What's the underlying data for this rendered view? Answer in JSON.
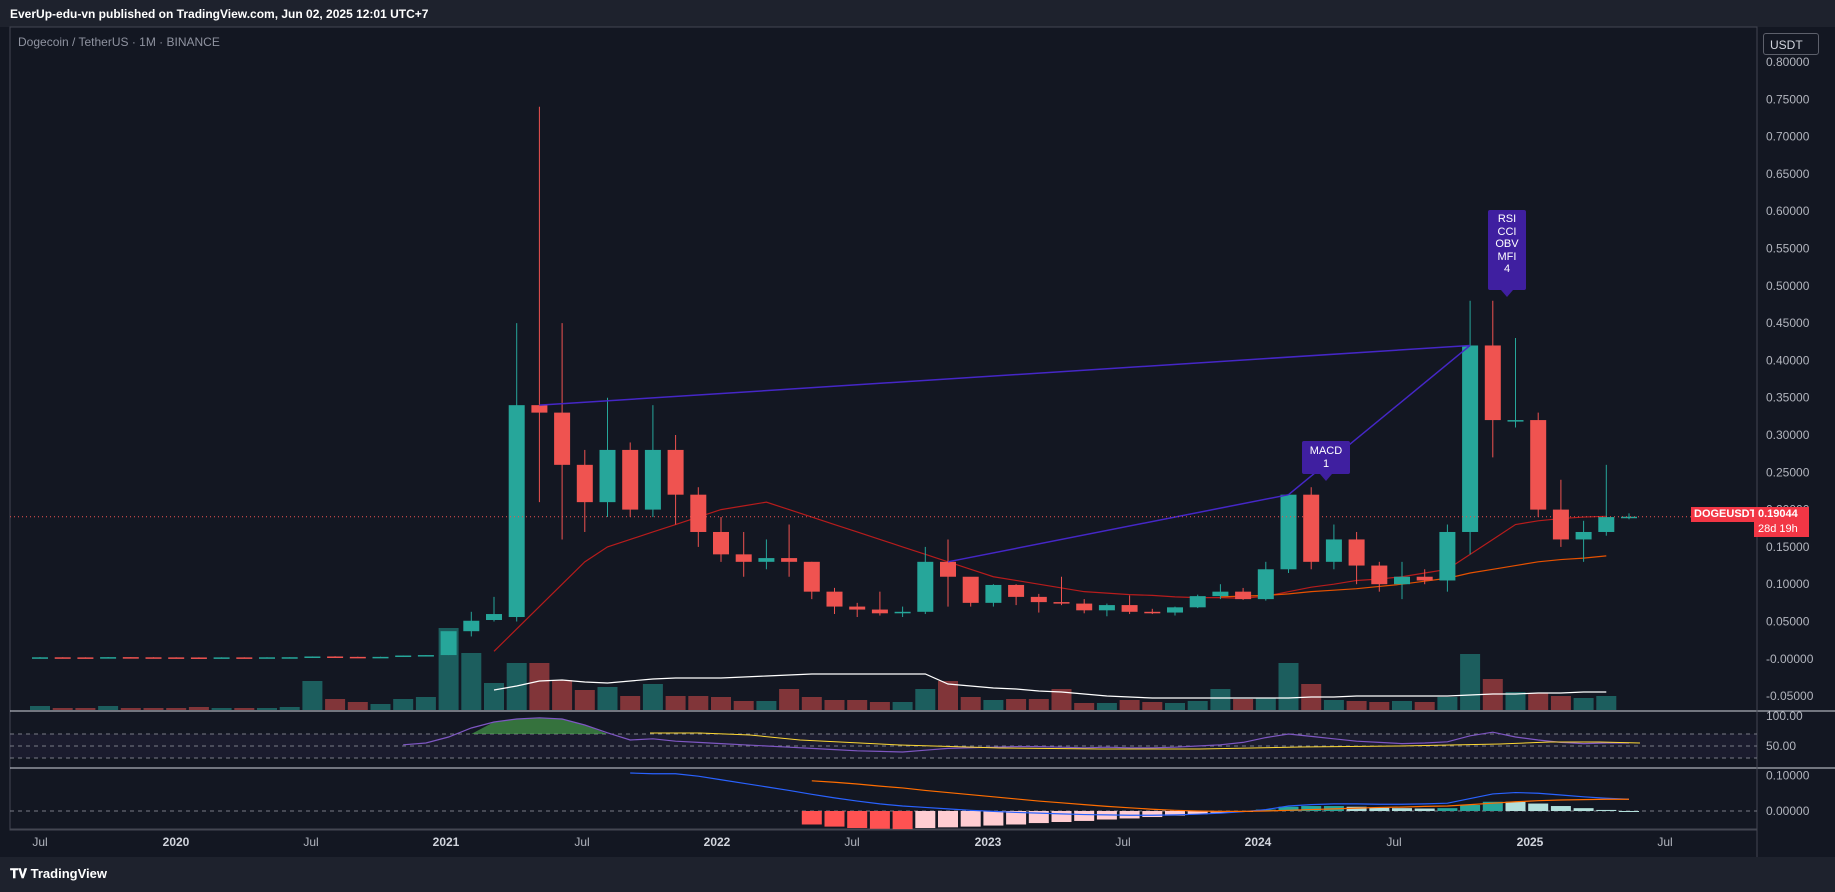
{
  "header": {
    "publisher_line": "EverUp-edu-vn published on TradingView.com, Jun 02, 2025 12:01 UTC+7"
  },
  "symbol": {
    "title": "Dogecoin / TetherUS · 1M · BINANCE",
    "ticker": "DOGEUSDT",
    "last_price": "0.19044",
    "countdown": "28d 19h"
  },
  "currency_button": "USDT",
  "footer": {
    "logo_text": "TradingView"
  },
  "colors": {
    "up": "#26a69a",
    "down": "#ef5350",
    "background": "#131722",
    "marker": "#3f1fa0",
    "divergence": "#4527c7"
  },
  "markers": [
    {
      "id": "macd",
      "lines": [
        "MACD",
        "1"
      ]
    },
    {
      "id": "multi",
      "lines": [
        "RSI",
        "CCI",
        "OBV",
        "MFI",
        "4"
      ]
    }
  ],
  "chart_data": {
    "type": "candlestick",
    "interval": "1M",
    "price_axis": {
      "min": -0.07,
      "max": 0.8,
      "ticks": [
        "0.80000",
        "0.75000",
        "0.70000",
        "0.65000",
        "0.60000",
        "0.55000",
        "0.50000",
        "0.45000",
        "0.40000",
        "0.35000",
        "0.30000",
        "0.25000",
        "0.20000",
        "0.15000",
        "0.10000",
        "0.05000",
        "-0.00000",
        "-0.05000"
      ]
    },
    "rsi_axis": {
      "ticks": [
        "100.00",
        "50.00"
      ]
    },
    "macd_axis": {
      "ticks": [
        "0.10000",
        "0.00000"
      ]
    },
    "time_axis": [
      "Jul",
      "2020",
      "Jul",
      "2021",
      "Jul",
      "2022",
      "Jul",
      "2023",
      "Jul",
      "2024",
      "Jul",
      "2025",
      "Jul"
    ],
    "time_axis_bold": [
      "2020",
      "2021",
      "2022",
      "2023",
      "2024",
      "2025"
    ],
    "candles": [
      [
        0.002,
        0.0022,
        0.0018,
        0.002
      ],
      [
        0.002,
        0.0021,
        0.0018,
        0.0019
      ],
      [
        0.0019,
        0.002,
        0.0017,
        0.0018
      ],
      [
        0.0018,
        0.0024,
        0.0017,
        0.0022
      ],
      [
        0.0022,
        0.0023,
        0.0019,
        0.002
      ],
      [
        0.002,
        0.0021,
        0.0018,
        0.0019
      ],
      [
        0.0019,
        0.002,
        0.0017,
        0.0018
      ],
      [
        0.0018,
        0.002,
        0.0016,
        0.0017
      ],
      [
        0.0017,
        0.002,
        0.0016,
        0.0019
      ],
      [
        0.0019,
        0.002,
        0.0017,
        0.0018
      ],
      [
        0.0018,
        0.0021,
        0.0017,
        0.002
      ],
      [
        0.002,
        0.0022,
        0.0019,
        0.0021
      ],
      [
        0.0021,
        0.0032,
        0.002,
        0.0031
      ],
      [
        0.0031,
        0.0034,
        0.0025,
        0.0026
      ],
      [
        0.0026,
        0.0028,
        0.0024,
        0.0025
      ],
      [
        0.0025,
        0.0027,
        0.0023,
        0.0026
      ],
      [
        0.0026,
        0.0045,
        0.0025,
        0.0044
      ],
      [
        0.0044,
        0.0051,
        0.0043,
        0.005
      ],
      [
        0.005,
        0.035,
        0.005,
        0.037
      ],
      [
        0.037,
        0.063,
        0.03,
        0.051
      ],
      [
        0.052,
        0.083,
        0.05,
        0.06
      ],
      [
        0.056,
        0.45,
        0.05,
        0.34
      ],
      [
        0.34,
        0.74,
        0.21,
        0.33
      ],
      [
        0.33,
        0.45,
        0.16,
        0.26
      ],
      [
        0.26,
        0.28,
        0.17,
        0.21
      ],
      [
        0.21,
        0.35,
        0.19,
        0.28
      ],
      [
        0.28,
        0.29,
        0.19,
        0.2
      ],
      [
        0.2,
        0.34,
        0.19,
        0.28
      ],
      [
        0.28,
        0.3,
        0.18,
        0.22
      ],
      [
        0.22,
        0.23,
        0.15,
        0.17
      ],
      [
        0.17,
        0.19,
        0.13,
        0.14
      ],
      [
        0.14,
        0.17,
        0.11,
        0.13
      ],
      [
        0.13,
        0.16,
        0.12,
        0.135
      ],
      [
        0.135,
        0.18,
        0.11,
        0.13
      ],
      [
        0.13,
        0.13,
        0.08,
        0.09
      ],
      [
        0.09,
        0.095,
        0.06,
        0.07
      ],
      [
        0.07,
        0.075,
        0.056,
        0.066
      ],
      [
        0.066,
        0.09,
        0.058,
        0.061
      ],
      [
        0.061,
        0.07,
        0.056,
        0.063
      ],
      [
        0.063,
        0.15,
        0.06,
        0.13
      ],
      [
        0.13,
        0.16,
        0.07,
        0.11
      ],
      [
        0.11,
        0.105,
        0.07,
        0.075
      ],
      [
        0.075,
        0.1,
        0.07,
        0.099
      ],
      [
        0.099,
        0.1,
        0.072,
        0.083
      ],
      [
        0.083,
        0.087,
        0.062,
        0.076
      ],
      [
        0.076,
        0.11,
        0.072,
        0.074
      ],
      [
        0.074,
        0.08,
        0.061,
        0.065
      ],
      [
        0.065,
        0.074,
        0.057,
        0.072
      ],
      [
        0.072,
        0.085,
        0.06,
        0.063
      ],
      [
        0.063,
        0.067,
        0.06,
        0.062
      ],
      [
        0.062,
        0.07,
        0.058,
        0.069
      ],
      [
        0.069,
        0.086,
        0.068,
        0.084
      ],
      [
        0.084,
        0.1,
        0.08,
        0.09
      ],
      [
        0.09,
        0.095,
        0.079,
        0.08
      ],
      [
        0.08,
        0.13,
        0.078,
        0.12
      ],
      [
        0.12,
        0.22,
        0.115,
        0.22
      ],
      [
        0.22,
        0.23,
        0.12,
        0.13
      ],
      [
        0.13,
        0.18,
        0.12,
        0.16
      ],
      [
        0.16,
        0.17,
        0.1,
        0.125
      ],
      [
        0.125,
        0.13,
        0.09,
        0.1
      ],
      [
        0.1,
        0.13,
        0.08,
        0.11
      ],
      [
        0.11,
        0.12,
        0.1,
        0.105
      ],
      [
        0.105,
        0.18,
        0.09,
        0.17
      ],
      [
        0.17,
        0.48,
        0.14,
        0.42
      ],
      [
        0.42,
        0.48,
        0.27,
        0.32
      ],
      [
        0.32,
        0.43,
        0.31,
        0.32
      ],
      [
        0.32,
        0.33,
        0.19,
        0.2
      ],
      [
        0.2,
        0.24,
        0.15,
        0.16
      ],
      [
        0.16,
        0.185,
        0.13,
        0.17
      ],
      [
        0.17,
        0.26,
        0.165,
        0.19
      ],
      [
        0.19,
        0.195,
        0.187,
        0.19044
      ]
    ],
    "volume_heights": [
      4,
      2,
      2,
      4,
      2,
      2,
      2,
      3,
      2,
      2,
      2,
      3,
      29,
      11,
      8,
      6,
      11,
      13,
      82,
      57,
      27,
      47,
      47,
      30,
      20,
      23,
      14,
      26,
      14,
      14,
      13,
      9,
      9,
      21,
      13,
      10,
      10,
      8,
      8,
      21,
      29,
      13,
      10,
      11,
      11,
      21,
      7,
      7,
      10,
      8,
      7,
      9,
      21,
      11,
      12,
      47,
      26,
      10,
      9,
      8,
      9,
      8,
      13,
      56,
      31,
      18,
      17,
      14,
      12,
      14,
      0
    ],
    "volume_ma_heights": [
      null,
      null,
      null,
      null,
      null,
      null,
      null,
      null,
      null,
      null,
      null,
      null,
      null,
      null,
      null,
      null,
      null,
      null,
      null,
      null,
      20,
      24,
      29,
      30,
      28,
      27,
      29,
      31,
      32,
      32,
      32,
      33,
      34,
      35,
      36,
      36,
      36,
      36,
      36,
      36,
      26,
      24,
      22,
      21,
      19,
      18,
      16,
      14,
      13,
      12,
      12,
      12,
      12,
      12,
      12,
      12,
      13,
      13,
      14,
      14,
      14,
      14,
      14,
      15,
      16,
      16,
      17,
      17,
      18,
      18,
      null
    ],
    "sma_short": [
      null,
      null,
      null,
      null,
      null,
      null,
      null,
      null,
      null,
      null,
      null,
      null,
      null,
      null,
      null,
      null,
      null,
      null,
      null,
      null,
      0.01,
      0.04,
      0.07,
      0.1,
      0.13,
      0.15,
      0.16,
      0.17,
      0.18,
      0.19,
      0.2,
      0.205,
      0.21,
      0.2,
      0.19,
      0.18,
      0.17,
      0.16,
      0.15,
      0.14,
      0.13,
      0.12,
      0.11,
      0.105,
      0.1,
      0.095,
      0.09,
      0.088,
      0.086,
      0.085,
      0.083,
      0.082,
      0.082,
      0.081,
      0.084,
      0.09,
      0.096,
      0.1,
      0.105,
      0.107,
      0.11,
      0.115,
      0.12,
      0.14,
      0.16,
      0.18,
      0.185,
      0.188,
      0.19,
      0.191,
      null
    ],
    "sma_long": [
      null,
      null,
      null,
      null,
      null,
      null,
      null,
      null,
      null,
      null,
      null,
      null,
      null,
      null,
      null,
      null,
      null,
      null,
      null,
      null,
      null,
      null,
      null,
      null,
      null,
      null,
      null,
      null,
      null,
      null,
      null,
      null,
      null,
      null,
      null,
      null,
      null,
      null,
      null,
      null,
      null,
      null,
      null,
      null,
      null,
      null,
      null,
      null,
      null,
      null,
      null,
      null,
      0.083,
      0.084,
      0.085,
      0.087,
      0.09,
      0.092,
      0.094,
      0.097,
      0.1,
      0.104,
      0.108,
      0.115,
      0.12,
      0.125,
      0.13,
      0.133,
      0.135,
      0.138,
      null
    ],
    "rsi": [
      null,
      null,
      null,
      null,
      null,
      null,
      null,
      null,
      null,
      null,
      null,
      null,
      null,
      null,
      null,
      null,
      52,
      55,
      65,
      80,
      90,
      95,
      97,
      95,
      85,
      72,
      60,
      62,
      58,
      56,
      54,
      52,
      50,
      48,
      46,
      44,
      42,
      41,
      40,
      43,
      46,
      47,
      48,
      49,
      49,
      48,
      47,
      48,
      47,
      47,
      48,
      50,
      52,
      56,
      64,
      70,
      66,
      62,
      58,
      56,
      54,
      55,
      57,
      67,
      73,
      65,
      60,
      56,
      54,
      55,
      55
    ],
    "rsi_ma": [
      null,
      null,
      null,
      null,
      null,
      null,
      null,
      null,
      null,
      null,
      null,
      null,
      null,
      null,
      null,
      null,
      null,
      null,
      null,
      null,
      null,
      null,
      null,
      null,
      null,
      null,
      null,
      null,
      null,
      null,
      null,
      null,
      null,
      null,
      null,
      null,
      null,
      null,
      null,
      null,
      null,
      null,
      null,
      null,
      null,
      null,
      null,
      null,
      null,
      null,
      null,
      null,
      null,
      null,
      null,
      null,
      null,
      null,
      null,
      null,
      null,
      null,
      null,
      null,
      null,
      null,
      null,
      null,
      null,
      null,
      null
    ],
    "macd_line": [
      null,
      null,
      null,
      null,
      null,
      null,
      null,
      null,
      null,
      null,
      null,
      null,
      null,
      null,
      null,
      null,
      null,
      null,
      null,
      null,
      null,
      null,
      null,
      null,
      null,
      null,
      0.107,
      0.105,
      0.105,
      0.098,
      0.088,
      0.078,
      0.068,
      0.058,
      0.047,
      0.037,
      0.028,
      0.02,
      0.014,
      0.01,
      0.006,
      0.002,
      -0.001,
      -0.004,
      -0.006,
      -0.008,
      -0.01,
      -0.011,
      -0.012,
      -0.012,
      -0.011,
      -0.009,
      -0.006,
      -0.002,
      0.004,
      0.014,
      0.018,
      0.02,
      0.02,
      0.019,
      0.019,
      0.02,
      0.022,
      0.035,
      0.048,
      0.052,
      0.05,
      0.045,
      0.04,
      0.036,
      0.033
    ],
    "macd_signal": [
      null,
      null,
      null,
      null,
      null,
      null,
      null,
      null,
      null,
      null,
      null,
      null,
      null,
      null,
      null,
      null,
      null,
      null,
      null,
      null,
      null,
      null,
      null,
      null,
      null,
      null,
      null,
      null,
      null,
      null,
      null,
      null,
      null,
      null,
      0.085,
      0.081,
      0.076,
      0.07,
      0.065,
      0.058,
      0.052,
      0.046,
      0.04,
      0.034,
      0.028,
      0.023,
      0.018,
      0.013,
      0.009,
      0.005,
      0.002,
      0.0,
      -0.001,
      -0.001,
      0.0,
      0.002,
      0.004,
      0.006,
      0.008,
      0.01,
      0.011,
      0.013,
      0.014,
      0.018,
      0.022,
      0.026,
      0.029,
      0.031,
      0.032,
      0.033,
      0.033
    ],
    "divergence_lines": [
      {
        "from_bar": 22,
        "from_price": 0.34,
        "to_bar": 63,
        "to_price": 0.42
      },
      {
        "from_bar": 40,
        "from_price": 0.13,
        "to_bar": 55,
        "to_price": 0.22
      },
      {
        "from_bar": 55,
        "from_price": 0.22,
        "to_bar": 63,
        "to_price": 0.42
      }
    ]
  }
}
